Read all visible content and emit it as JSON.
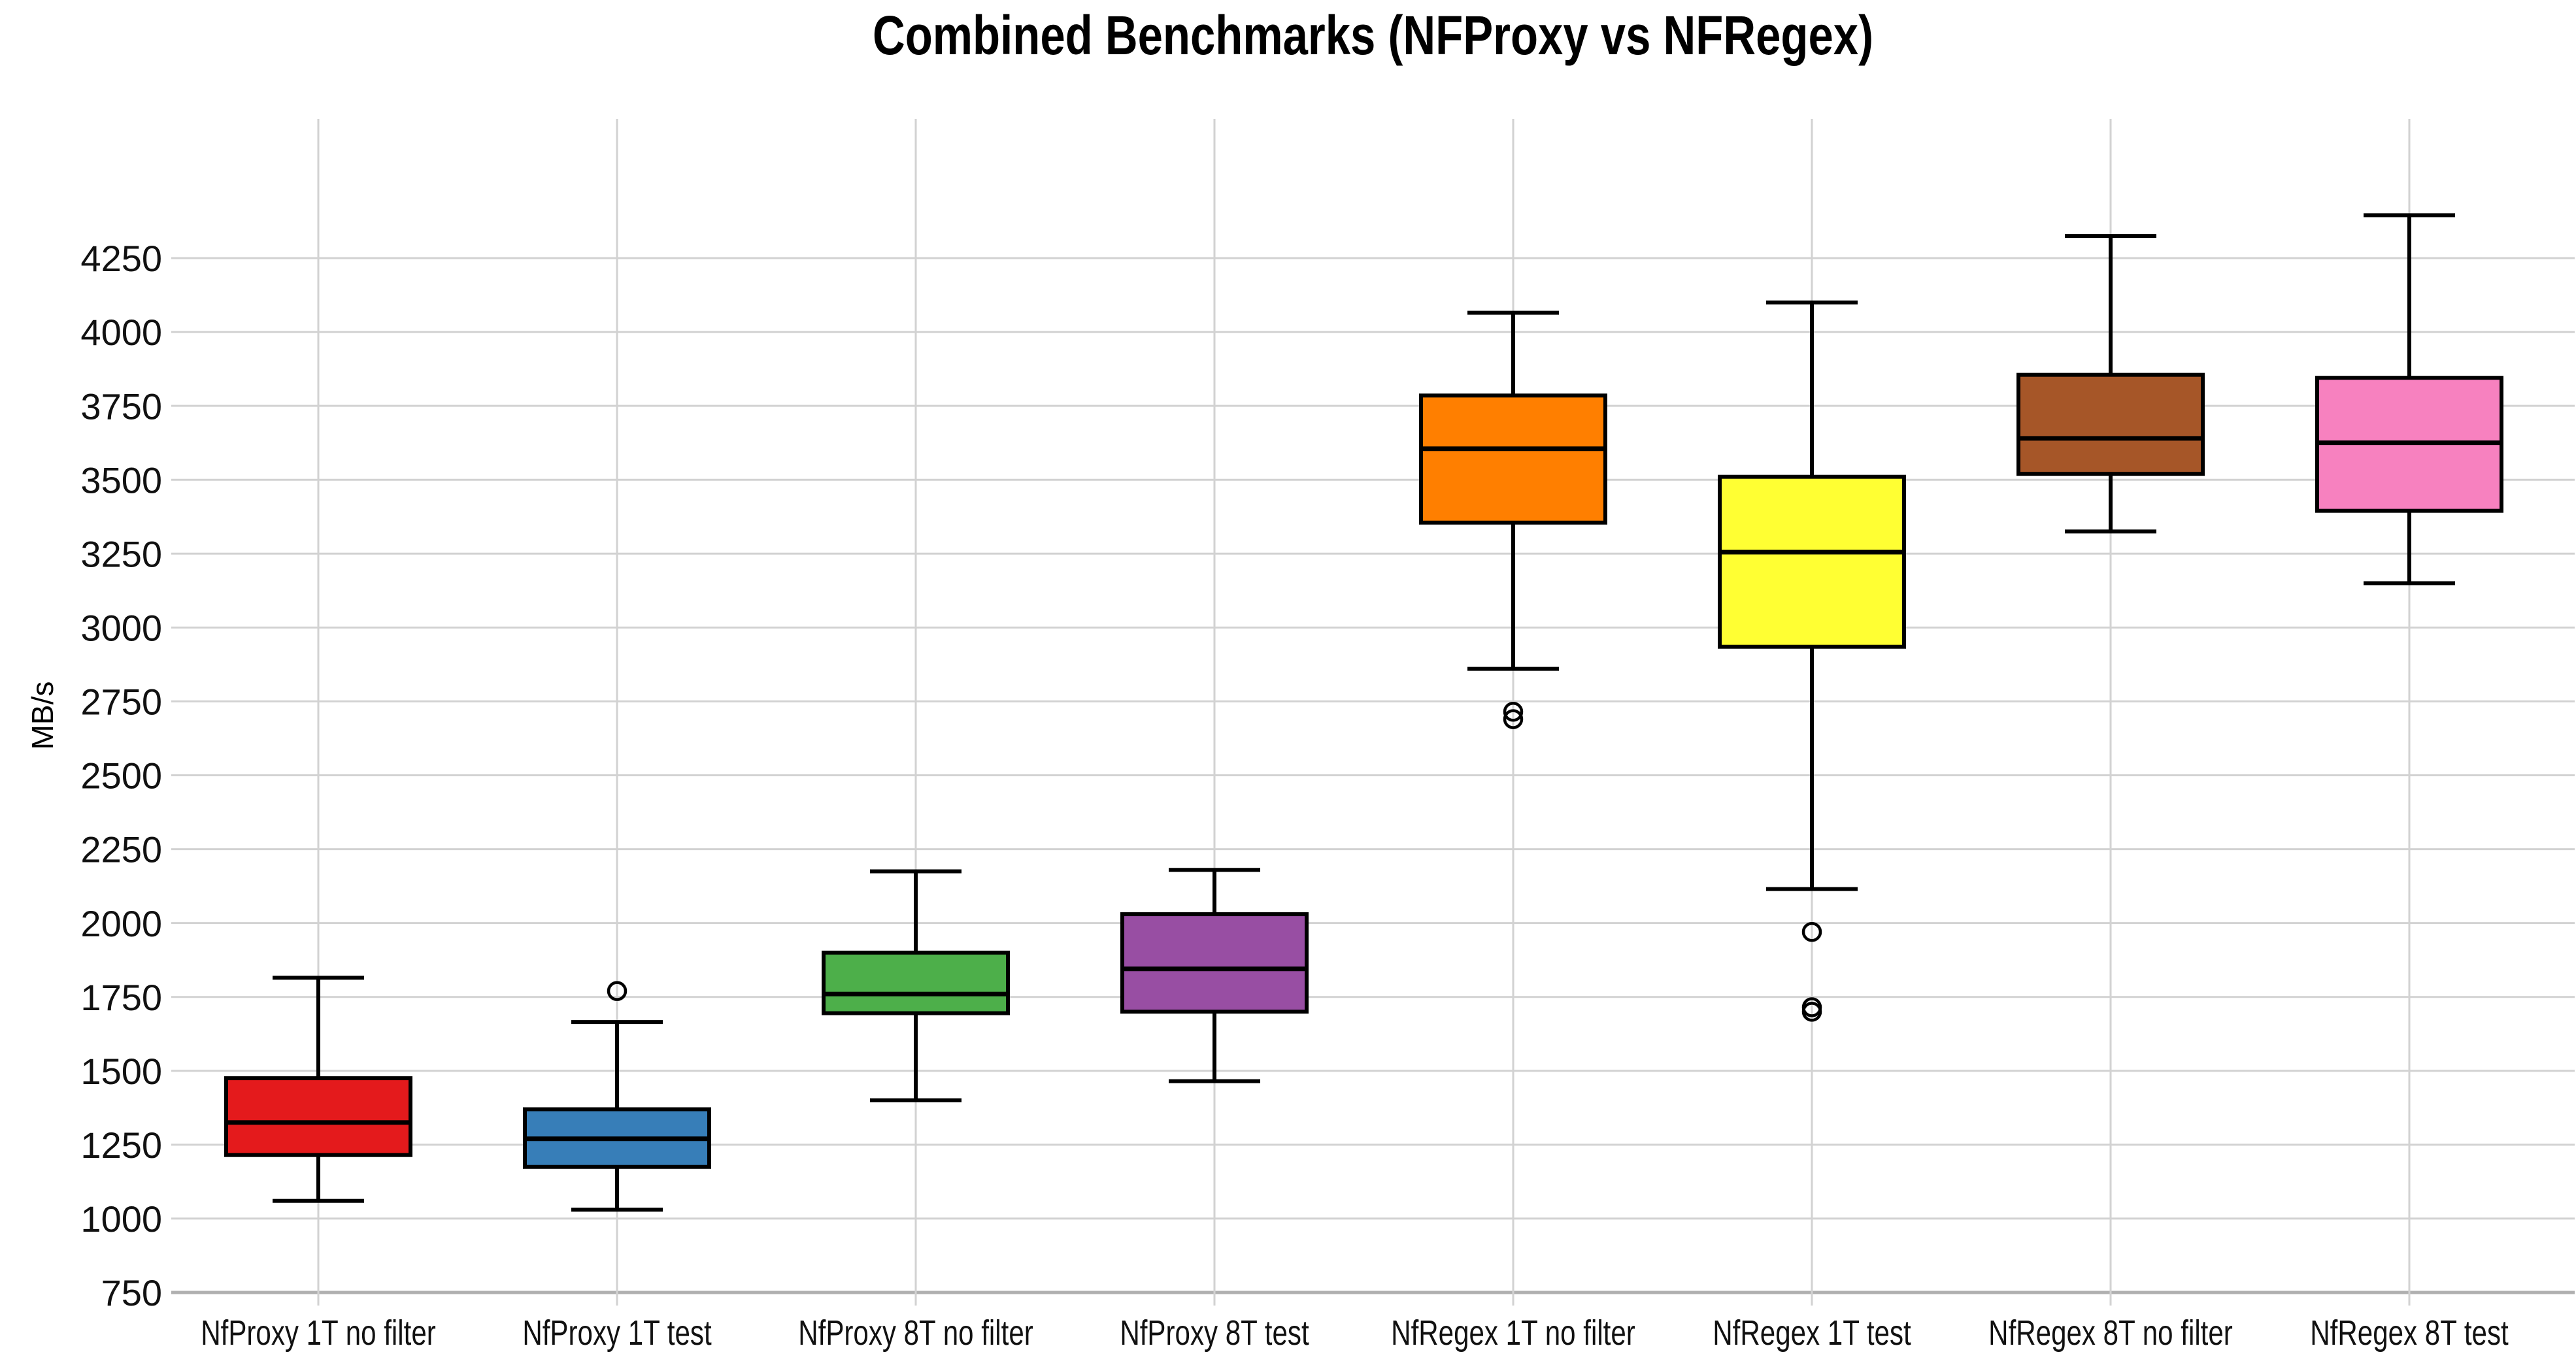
{
  "chart_data": {
    "type": "box",
    "title": "Combined Benchmarks (NFProxy vs NFRegex)",
    "ylabel": "MB/s",
    "xlabel": "",
    "ylim": [
      700,
      4720
    ],
    "yticks": [
      750,
      1000,
      1250,
      1500,
      1750,
      2000,
      2250,
      2500,
      2750,
      3000,
      3250,
      3500,
      3750,
      4000,
      4250
    ],
    "grid": true,
    "grid_color": "#d2d2d2",
    "axis_line_color": "#b0b0b0",
    "box_edge_color": "#000000",
    "legend_position": "none",
    "series": [
      {
        "label": "NfProxy 1T no filter",
        "color": "#e41a1c",
        "whisker_low": 1060,
        "q1": 1215,
        "median": 1325,
        "q3": 1475,
        "whisker_high": 1815,
        "outliers": []
      },
      {
        "label": "NfProxy 1T test",
        "color": "#377eb8",
        "whisker_low": 1030,
        "q1": 1175,
        "median": 1270,
        "q3": 1370,
        "whisker_high": 1665,
        "outliers": [
          1770
        ]
      },
      {
        "label": "NfProxy 8T no filter",
        "color": "#4daf4a",
        "whisker_low": 1400,
        "q1": 1695,
        "median": 1760,
        "q3": 1900,
        "whisker_high": 2175,
        "outliers": []
      },
      {
        "label": "NfProxy 8T test",
        "color": "#984ea3",
        "whisker_low": 1465,
        "q1": 1700,
        "median": 1845,
        "q3": 2030,
        "whisker_high": 2180,
        "outliers": []
      },
      {
        "label": "NfRegex 1T no filter",
        "color": "#ff7f00",
        "whisker_low": 2860,
        "q1": 3355,
        "median": 3605,
        "q3": 3785,
        "whisker_high": 4065,
        "outliers": [
          2715,
          2690
        ]
      },
      {
        "label": "NfRegex 1T test",
        "color": "#ffff33",
        "whisker_low": 2115,
        "q1": 2935,
        "median": 3255,
        "q3": 3510,
        "whisker_high": 4100,
        "outliers": [
          1970,
          1715,
          1700
        ]
      },
      {
        "label": "NfRegex 8T no filter",
        "color": "#a65628",
        "whisker_low": 3325,
        "q1": 3520,
        "median": 3640,
        "q3": 3855,
        "whisker_high": 4325,
        "outliers": []
      },
      {
        "label": "NfRegex 8T test",
        "color": "#f781bf",
        "whisker_low": 3150,
        "q1": 3395,
        "median": 3625,
        "q3": 3845,
        "whisker_high": 4395,
        "outliers": []
      }
    ]
  }
}
